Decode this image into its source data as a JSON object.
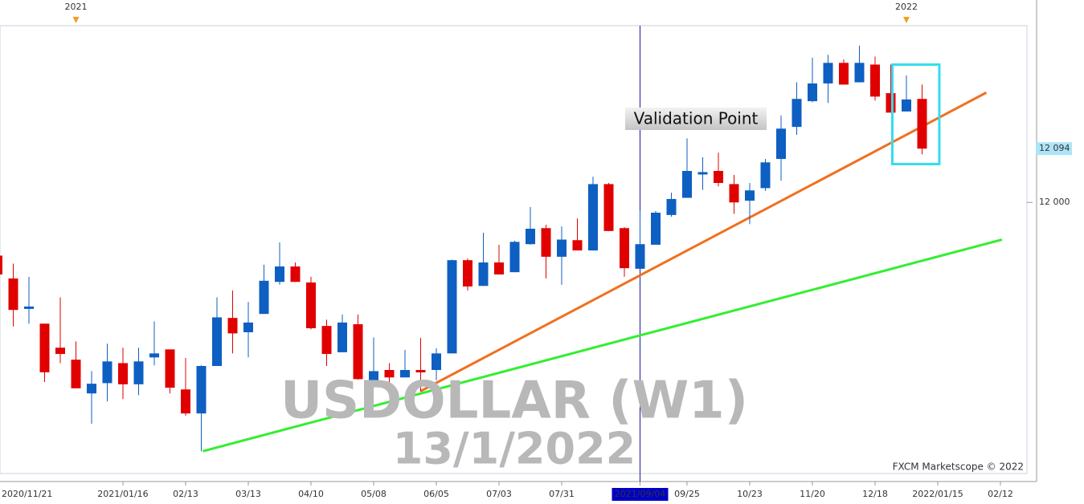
{
  "chart_data": {
    "type": "candlestick",
    "watermark_title": "USDOLLAR (W1)",
    "watermark_date": "13/1/2022",
    "annotation": "Validation Point",
    "credit": "FXCM Marketscope © 2022",
    "categories": [
      "2020/11/21",
      null,
      null,
      null,
      null,
      null,
      null,
      null,
      "2021/01/16",
      null,
      null,
      null,
      "02/13",
      null,
      null,
      null,
      "03/13",
      null,
      null,
      null,
      "04/10",
      null,
      null,
      null,
      "05/08",
      null,
      null,
      null,
      "06/05",
      null,
      null,
      null,
      "07/03",
      null,
      null,
      null,
      "07/31",
      null,
      null,
      null,
      null,
      "2021/09/04",
      null,
      null,
      "09/25",
      null,
      null,
      null,
      "10/23",
      null,
      null,
      null,
      "11/20",
      null,
      null,
      null,
      "12/18",
      null,
      null,
      null,
      "2022/01/15",
      null,
      null,
      null,
      "02/12"
    ],
    "highlight_category": 41,
    "year_marks": [
      {
        "index": 5,
        "label": "2021"
      },
      {
        "index": 58,
        "label": "2022"
      }
    ],
    "open": [
      11907,
      11867,
      11815,
      11788,
      11746,
      11725,
      11666,
      11684,
      11719,
      11682,
      11729,
      11743,
      11673,
      11631,
      11714,
      11798,
      11773,
      11805,
      11861,
      11888,
      11860,
      11784,
      11738,
      11787,
      11686,
      11707,
      11694,
      11707,
      11707,
      11736,
      11899,
      11854,
      11895,
      11878,
      11927,
      11955,
      11905,
      11934,
      11916,
      12032,
      11955,
      11884,
      11926,
      11978,
      12008,
      12051,
      12055,
      12032,
      12003,
      12025,
      12076,
      12132,
      12177,
      12208,
      12244,
      12210,
      12241,
      12191,
      12159,
      12181,
      null,
      null,
      null,
      null,
      null
    ],
    "high": [
      11907,
      11893,
      11870,
      11788,
      11834,
      11757,
      11705,
      11753,
      11746,
      11746,
      11792,
      11743,
      11728,
      11715,
      11834,
      11846,
      11826,
      11891,
      11930,
      11895,
      11870,
      11795,
      11804,
      11804,
      11764,
      11719,
      11742,
      11763,
      11745,
      11900,
      11902,
      11947,
      11926,
      11933,
      11992,
      11961,
      11958,
      11972,
      12045,
      12034,
      11957,
      11986,
      11985,
      12017,
      12112,
      12079,
      12087,
      12048,
      12034,
      12076,
      12152,
      12210,
      12253,
      12258,
      12250,
      12274,
      12255,
      12241,
      12222,
      12206,
      null,
      null,
      null,
      null,
      null
    ],
    "low": [
      11874,
      11783,
      11788,
      11686,
      11719,
      11675,
      11613,
      11652,
      11656,
      11663,
      11715,
      11666,
      11627,
      11565,
      11714,
      11736,
      11729,
      11805,
      11856,
      11861,
      11778,
      11714,
      11738,
      11690,
      11686,
      11684,
      11694,
      11669,
      11689,
      11736,
      11846,
      11854,
      11874,
      11878,
      11926,
      11867,
      11856,
      11916,
      11916,
      11950,
      11870,
      11884,
      11926,
      11975,
      12008,
      12022,
      12028,
      11980,
      11962,
      12020,
      12038,
      12118,
      12175,
      12174,
      12206,
      12210,
      12178,
      12157,
      12159,
      12084,
      null,
      null,
      null,
      null,
      null
    ],
    "close": [
      11874,
      11812,
      11818,
      11703,
      11735,
      11675,
      11683,
      11722,
      11682,
      11722,
      11736,
      11676,
      11631,
      11714,
      11799,
      11771,
      11790,
      11863,
      11888,
      11861,
      11780,
      11735,
      11790,
      11691,
      11705,
      11694,
      11707,
      11703,
      11736,
      11899,
      11853,
      11895,
      11874,
      11931,
      11954,
      11905,
      11935,
      11916,
      12032,
      11950,
      11885,
      11927,
      11982,
      12006,
      12055,
      12053,
      12034,
      12000,
      12021,
      12070,
      12129,
      12181,
      12208,
      12244,
      12206,
      12244,
      12185,
      12157,
      12180,
      12094,
      null,
      null,
      null,
      null,
      null
    ],
    "up_color": "#0d5fc2",
    "down_color": "#e00000",
    "trend_lines": [
      {
        "x": [
          27,
          63.1
        ],
        "y": [
          11670,
          12192
        ],
        "color": "#f07020"
      },
      {
        "x": [
          13.1,
          64.1
        ],
        "y": [
          11565,
          11935
        ],
        "color": "#33ee33"
      }
    ],
    "highlight_box": {
      "x": [
        57.1,
        60.1
      ],
      "y": [
        12067,
        12241
      ],
      "color": "#33ddee"
    },
    "xlim": [
      0.154,
      65.692
    ],
    "ylim": [
      11526,
      12309
    ],
    "yticks": [
      {
        "value": 12000,
        "label": "12 000"
      }
    ],
    "last_price": {
      "value": 12094,
      "label": "12 094"
    }
  }
}
